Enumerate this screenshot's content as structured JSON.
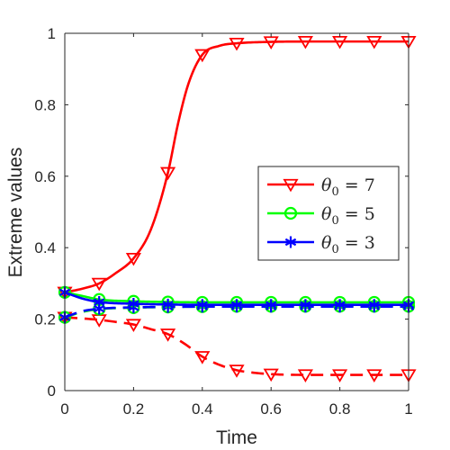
{
  "chart_data": {
    "type": "line",
    "title": "",
    "xlabel": "Time",
    "ylabel": "Extreme values",
    "xlim": [
      0,
      1
    ],
    "ylim": [
      0,
      1
    ],
    "xticks": [
      "0",
      "0.2",
      "0.4",
      "0.6",
      "0.8",
      "1"
    ],
    "yticks": [
      "0",
      "0.2",
      "0.4",
      "0.6",
      "0.8",
      "1"
    ],
    "grid": false,
    "legend_placement": "center-right",
    "series": [
      {
        "name": "θ0 = 7",
        "legend_main": "θ",
        "legend_sub": "0",
        "legend_rest": " = 7",
        "color": "#ff0000",
        "marker": "triangle-down",
        "bound": "max",
        "linestyle": "solid",
        "x": [
          0,
          0.05,
          0.1,
          0.15,
          0.2,
          0.25,
          0.3,
          0.33,
          0.36,
          0.4,
          0.45,
          0.5,
          0.6,
          0.7,
          0.8,
          0.9,
          1.0
        ],
        "y": [
          0.275,
          0.285,
          0.3,
          0.33,
          0.37,
          0.45,
          0.61,
          0.75,
          0.86,
          0.94,
          0.965,
          0.972,
          0.976,
          0.977,
          0.977,
          0.977,
          0.977
        ],
        "marker_x": [
          0,
          0.1,
          0.2,
          0.3,
          0.4,
          0.5,
          0.6,
          0.7,
          0.8,
          0.9,
          1.0
        ]
      },
      {
        "name": "θ0 = 7 (min)",
        "color": "#ff0000",
        "marker": "triangle-down",
        "bound": "min",
        "linestyle": "dashed",
        "x": [
          0,
          0.05,
          0.1,
          0.15,
          0.2,
          0.25,
          0.3,
          0.35,
          0.4,
          0.45,
          0.5,
          0.55,
          0.6,
          0.7,
          0.8,
          0.9,
          1.0
        ],
        "y": [
          0.205,
          0.202,
          0.198,
          0.192,
          0.185,
          0.172,
          0.158,
          0.13,
          0.095,
          0.072,
          0.057,
          0.05,
          0.046,
          0.044,
          0.044,
          0.044,
          0.044
        ],
        "marker_x": [
          0,
          0.1,
          0.2,
          0.3,
          0.4,
          0.5,
          0.6,
          0.7,
          0.8,
          0.9,
          1.0
        ]
      },
      {
        "name": "θ0 = 5",
        "legend_main": "θ",
        "legend_sub": "0",
        "legend_rest": " = 5",
        "color": "#00ff00",
        "marker": "circle",
        "bound": "max",
        "linestyle": "solid",
        "x": [
          0,
          0.05,
          0.1,
          0.2,
          0.3,
          0.4,
          0.5,
          0.6,
          0.7,
          0.8,
          0.9,
          1.0
        ],
        "y": [
          0.275,
          0.265,
          0.255,
          0.25,
          0.248,
          0.247,
          0.247,
          0.247,
          0.247,
          0.247,
          0.247,
          0.247
        ],
        "marker_x": [
          0,
          0.1,
          0.2,
          0.3,
          0.4,
          0.5,
          0.6,
          0.7,
          0.8,
          0.9,
          1.0
        ]
      },
      {
        "name": "θ0 = 5 (min)",
        "color": "#00ff00",
        "marker": "circle",
        "bound": "min",
        "linestyle": "dashed",
        "x": [
          0,
          0.05,
          0.1,
          0.2,
          0.3,
          0.4,
          0.5,
          0.6,
          0.7,
          0.8,
          0.9,
          1.0
        ],
        "y": [
          0.205,
          0.22,
          0.228,
          0.232,
          0.234,
          0.235,
          0.236,
          0.236,
          0.236,
          0.236,
          0.236,
          0.236
        ],
        "marker_x": [
          0,
          0.1,
          0.2,
          0.3,
          0.4,
          0.5,
          0.6,
          0.7,
          0.8,
          0.9,
          1.0
        ]
      },
      {
        "name": "θ0 = 3",
        "legend_main": "θ",
        "legend_sub": "0",
        "legend_rest": " = 3",
        "color": "#0000ff",
        "marker": "asterisk",
        "bound": "max",
        "linestyle": "solid",
        "x": [
          0,
          0.05,
          0.1,
          0.2,
          0.3,
          0.4,
          0.5,
          0.6,
          0.7,
          0.8,
          0.9,
          1.0
        ],
        "y": [
          0.275,
          0.258,
          0.248,
          0.243,
          0.241,
          0.24,
          0.24,
          0.24,
          0.24,
          0.24,
          0.24,
          0.24
        ],
        "marker_x": [
          0,
          0.1,
          0.2,
          0.3,
          0.4,
          0.5,
          0.6,
          0.7,
          0.8,
          0.9,
          1.0
        ]
      },
      {
        "name": "θ0 = 3 (min)",
        "color": "#0000ff",
        "marker": "asterisk",
        "bound": "min",
        "linestyle": "dashed",
        "x": [
          0,
          0.05,
          0.1,
          0.2,
          0.3,
          0.4,
          0.5,
          0.6,
          0.7,
          0.8,
          0.9,
          1.0
        ],
        "y": [
          0.205,
          0.222,
          0.229,
          0.233,
          0.234,
          0.235,
          0.235,
          0.235,
          0.235,
          0.235,
          0.235,
          0.235
        ],
        "marker_x": [
          0,
          0.1,
          0.2,
          0.3,
          0.4,
          0.5,
          0.6,
          0.7,
          0.8,
          0.9,
          1.0
        ]
      }
    ]
  }
}
